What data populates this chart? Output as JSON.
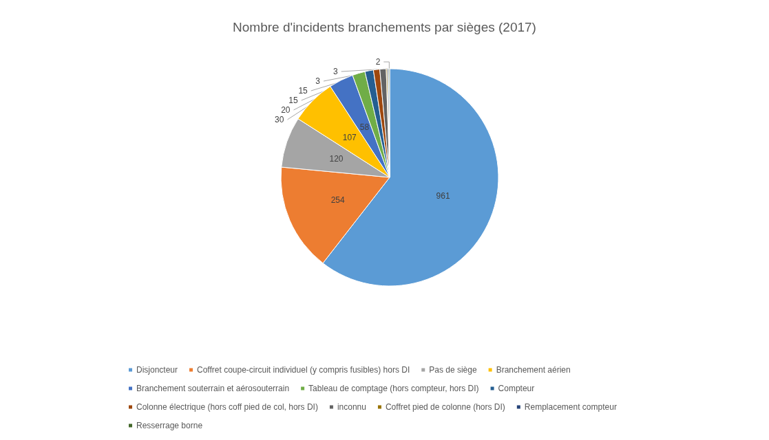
{
  "chart_data": {
    "type": "pie",
    "title": "Nombre d'incidents branchements par sièges (2017)",
    "categories": [
      "Disjoncteur",
      "Coffret coupe-circuit individuel (y compris fusibles) hors DI",
      "Pas de siège",
      "Branchement aérien",
      "Branchement souterrain et aérosouterrain",
      "Tableau de comptage (hors compteur, hors DI)",
      "Compteur",
      "Colonne électrique (hors coff pied de col, hors DI)",
      "inconnu",
      "Coffret pied de colonne (hors DI)",
      "Remplacement compteur",
      "Resserrage borne"
    ],
    "values": [
      961,
      254,
      120,
      107,
      58,
      30,
      20,
      15,
      15,
      3,
      3,
      2
    ],
    "colors": [
      "#5b9bd5",
      "#ed7d31",
      "#a5a5a5",
      "#ffc000",
      "#4472c4",
      "#70ad47",
      "#255e91",
      "#9e480e",
      "#636363",
      "#997300",
      "#264478",
      "#43682b"
    ],
    "data_labels": true,
    "legend": "bottom"
  }
}
